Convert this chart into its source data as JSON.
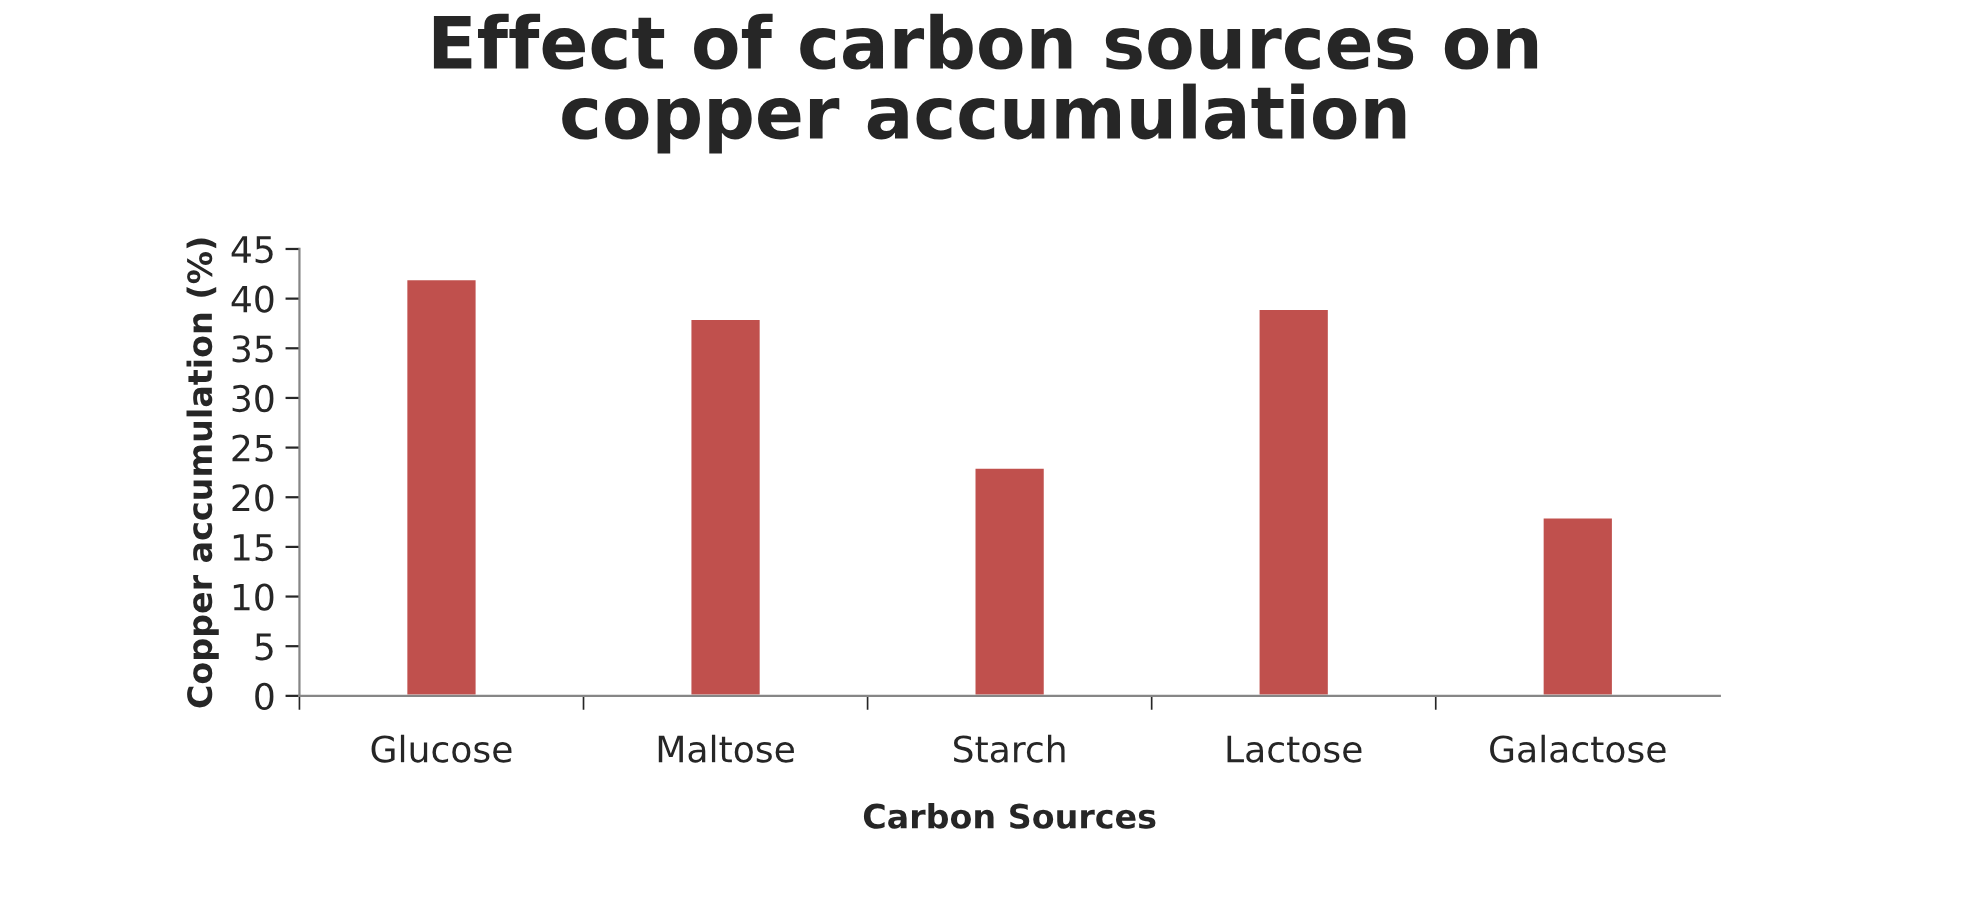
{
  "chart_data": {
    "type": "bar",
    "title": "Effect of carbon sources on\ncopper accumulation",
    "xlabel": "Carbon Sources",
    "ylabel": "Copper accumulation (%)",
    "categories": [
      "Glucose",
      "Maltose",
      "Starch",
      "Lactose",
      "Galactose"
    ],
    "values": [
      42,
      38,
      23,
      39,
      18
    ],
    "color": "#c0504d",
    "ylim": [
      0,
      45
    ],
    "yticks": [
      0,
      5,
      10,
      15,
      20,
      25,
      30,
      35,
      40,
      45
    ],
    "grid": false,
    "legend": false
  }
}
